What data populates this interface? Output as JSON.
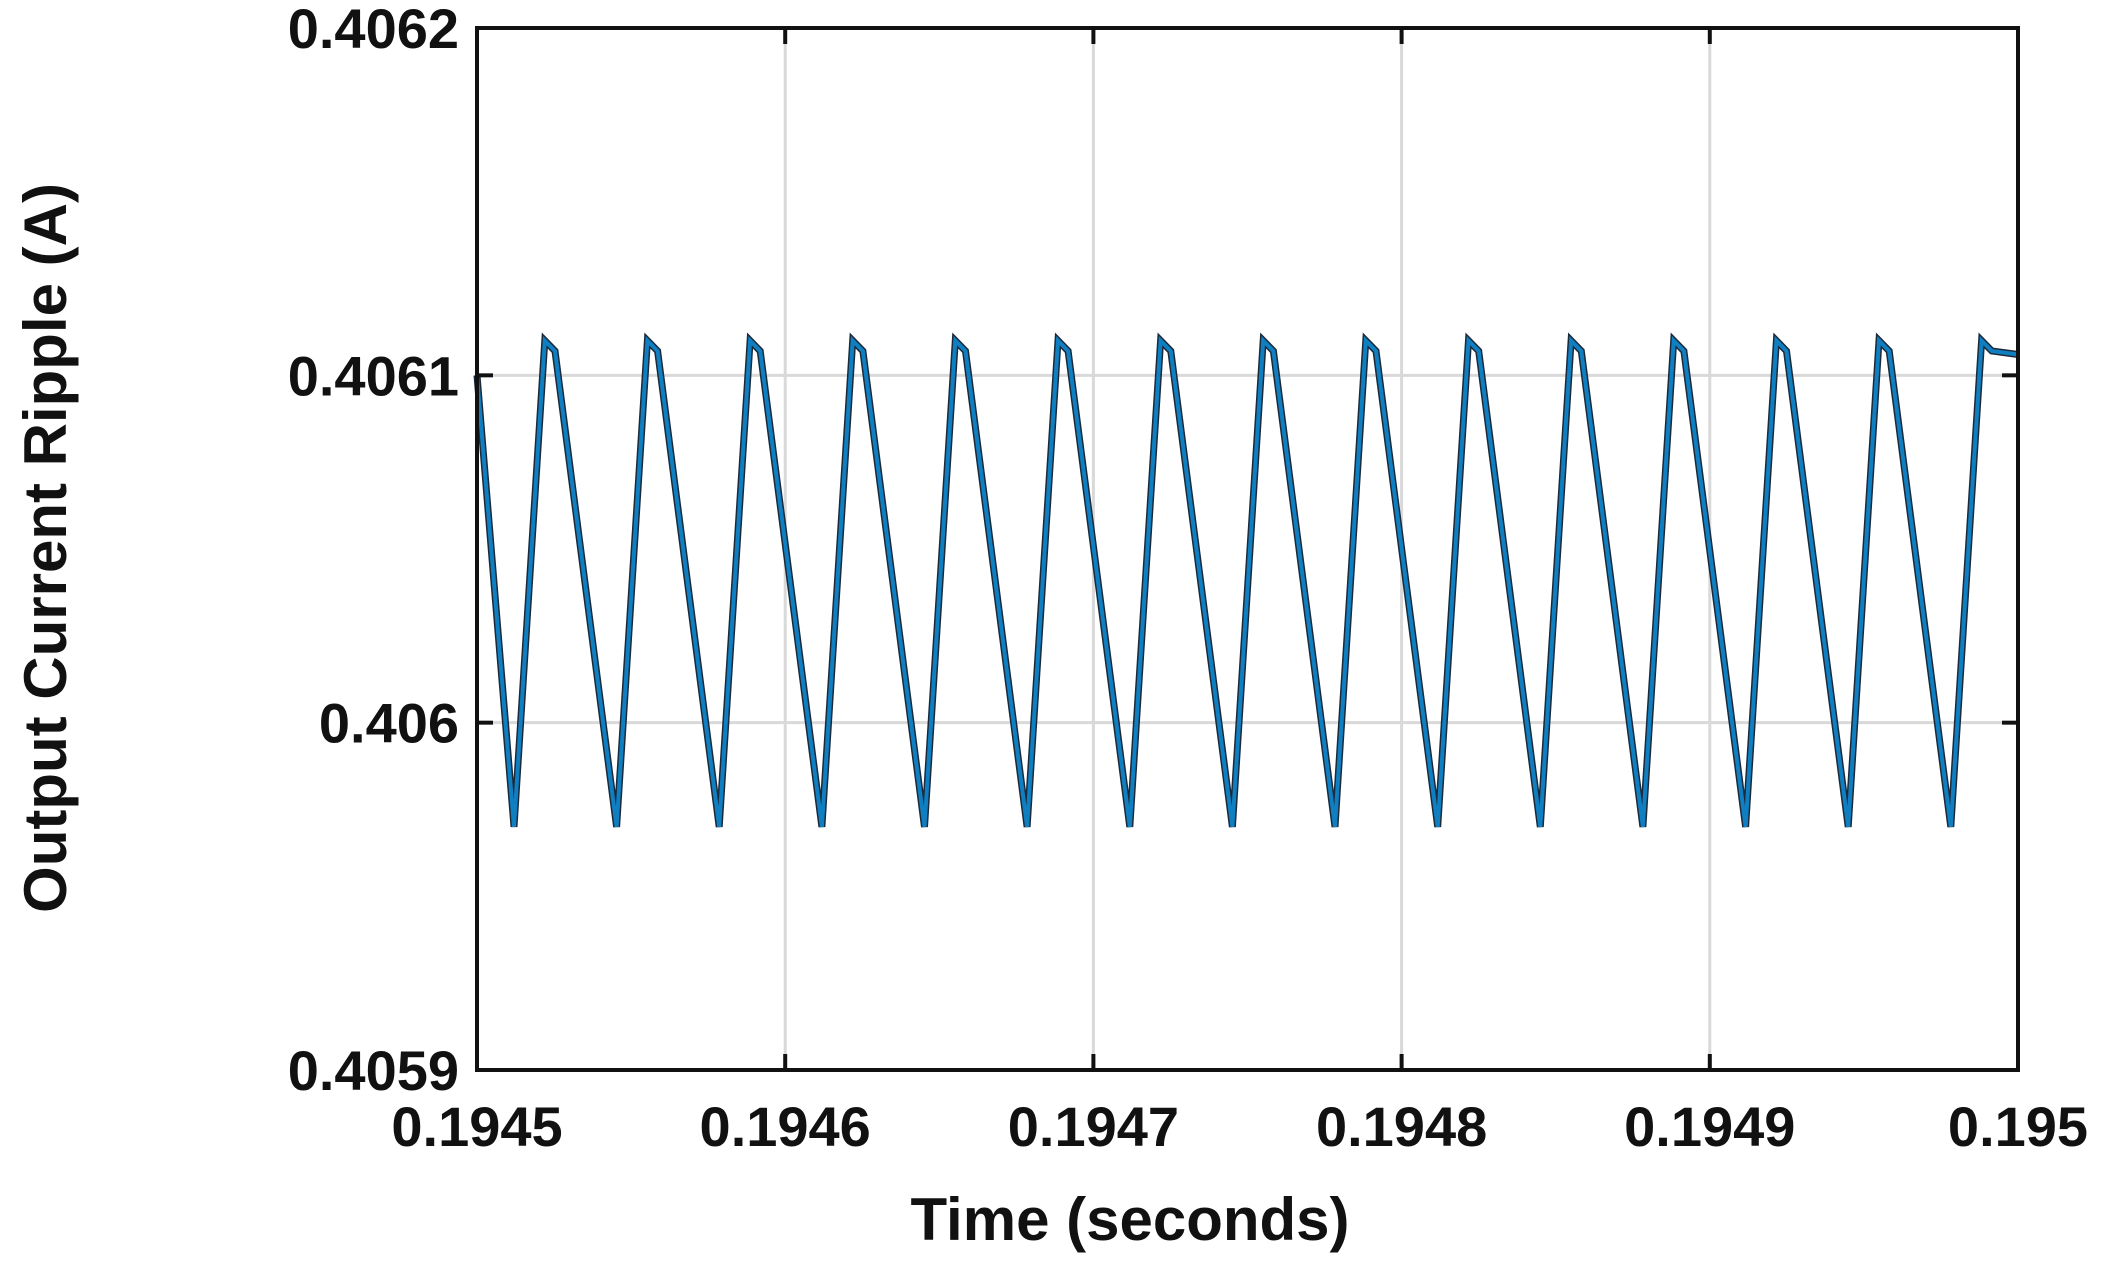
{
  "chart_data": {
    "type": "line",
    "title": "",
    "xlabel": "Time (seconds)",
    "ylabel": "Output Current Ripple (A)",
    "xlim": [
      0.1945,
      0.195
    ],
    "ylim": [
      0.4059,
      0.4062
    ],
    "x_ticks": [
      0.1945,
      0.1946,
      0.1947,
      0.1948,
      0.1949,
      0.195
    ],
    "x_tick_labels": [
      "0.1945",
      "0.1946",
      "0.1947",
      "0.1948",
      "0.1949",
      "0.195"
    ],
    "y_ticks": [
      0.4059,
      0.406,
      0.4061,
      0.4062
    ],
    "y_tick_labels": [
      "0.4059",
      "0.406",
      "0.4061",
      "0.4062"
    ],
    "grid": true,
    "legend": "none",
    "series": [
      {
        "color": "#0f7fc2",
        "period": 3.33e-05,
        "first_min_x": 0.194512,
        "first_peak_x": 0.194522,
        "peak_value": 0.40611,
        "shoulder_value": 0.406107,
        "min_value": 0.40597,
        "x_end": 0.195,
        "y_end": 0.406106,
        "x_start": 0.1945,
        "y_start": 0.4061
      }
    ],
    "colors": {
      "line": "#0f7fc2",
      "line_shadow": "#1b2a3a",
      "axis": "#111111",
      "grid": "#d9d9d9"
    }
  }
}
